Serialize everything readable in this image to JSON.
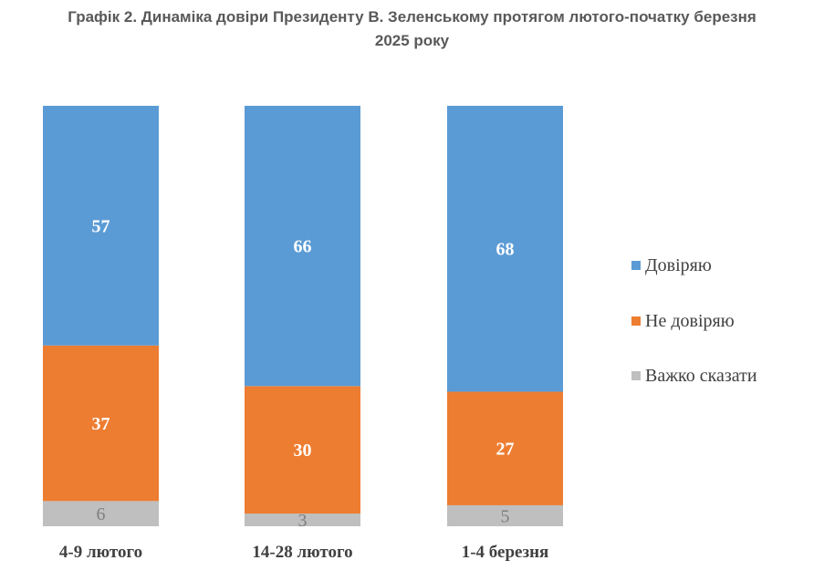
{
  "title_line1": "Графік 2. Динаміка довіри Президенту В. Зеленському протягом лютого-початку березня",
  "title_line2": "2025 року",
  "chart_data": {
    "type": "bar",
    "stacked": true,
    "stack_mode": "percent",
    "categories": [
      "4-9 лютого",
      "14-28 лютого",
      "1-4 березня"
    ],
    "series": [
      {
        "name": "Важко сказати",
        "values": [
          6,
          3,
          5
        ],
        "color": "#bfbfbf"
      },
      {
        "name": "Не довіряю",
        "values": [
          37,
          30,
          27
        ],
        "color": "#ed7d31"
      },
      {
        "name": "Довіряю",
        "values": [
          57,
          66,
          68
        ],
        "color": "#5b9bd5"
      }
    ],
    "legend_order": [
      "Довіряю",
      "Не довіряю",
      "Важко сказати"
    ],
    "legend_position": "right",
    "grid": false,
    "data_labels": true
  }
}
